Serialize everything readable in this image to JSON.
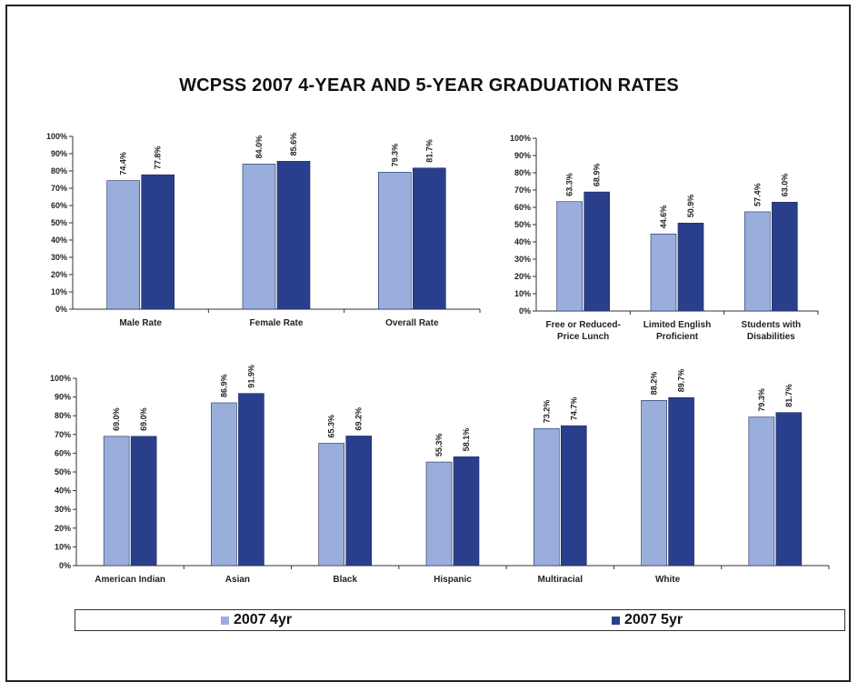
{
  "title": "WCPSS 2007 4-YEAR AND 5-YEAR GRADUATION RATES",
  "colors": {
    "yr4": "#9aaedc",
    "yr5": "#2a3f8c"
  },
  "legend": {
    "yr4": "2007 4yr",
    "yr5": "2007 5yr"
  },
  "chart_data": [
    {
      "type": "bar",
      "categories": [
        "Male Rate",
        "Female Rate",
        "Overall Rate"
      ],
      "series": [
        {
          "name": "2007 4yr",
          "values": [
            74.4,
            84.0,
            79.3
          ],
          "labels": [
            "74.4%",
            "84.0%",
            "79.3%"
          ]
        },
        {
          "name": "2007 5yr",
          "values": [
            77.8,
            85.6,
            81.7
          ],
          "labels": [
            "77.8%",
            "85.6%",
            "81.7%"
          ]
        }
      ],
      "ylim": [
        0,
        100
      ],
      "yticks": [
        "0%",
        "10%",
        "20%",
        "30%",
        "40%",
        "50%",
        "60%",
        "70%",
        "80%",
        "90%",
        "100%"
      ]
    },
    {
      "type": "bar",
      "categories": [
        [
          "Free or Reduced-",
          "Price Lunch"
        ],
        [
          "Limited English",
          "Proficient"
        ],
        [
          "Students with",
          "Disabilities"
        ]
      ],
      "series": [
        {
          "name": "2007 4yr",
          "values": [
            63.3,
            44.6,
            57.4
          ],
          "labels": [
            "63.3%",
            "44.6%",
            "57.4%"
          ]
        },
        {
          "name": "2007 5yr",
          "values": [
            68.9,
            50.9,
            63.0
          ],
          "labels": [
            "68.9%",
            "50.9%",
            "63.0%"
          ]
        }
      ],
      "ylim": [
        0,
        100
      ],
      "yticks": [
        "0%",
        "10%",
        "20%",
        "30%",
        "40%",
        "50%",
        "60%",
        "70%",
        "80%",
        "90%",
        "100%"
      ]
    },
    {
      "type": "bar",
      "categories": [
        "American Indian",
        "Asian",
        "Black",
        "Hispanic",
        "Multiracial",
        "White",
        ""
      ],
      "series": [
        {
          "name": "2007 4yr",
          "values": [
            69.0,
            86.9,
            65.3,
            55.3,
            73.2,
            88.2,
            79.3
          ],
          "labels": [
            "69.0%",
            "86.9%",
            "65.3%",
            "55.3%",
            "73.2%",
            "88.2%",
            "79.3%"
          ]
        },
        {
          "name": "2007 5yr",
          "values": [
            69.0,
            91.9,
            69.2,
            58.1,
            74.7,
            89.7,
            81.7
          ],
          "labels": [
            "69.0%",
            "91.9%",
            "69.2%",
            "58.1%",
            "74.7%",
            "89.7%",
            "81.7%"
          ]
        }
      ],
      "ylim": [
        0,
        100
      ],
      "yticks": [
        "0%",
        "10%",
        "20%",
        "30%",
        "40%",
        "50%",
        "60%",
        "70%",
        "80%",
        "90%",
        "100%"
      ]
    }
  ]
}
